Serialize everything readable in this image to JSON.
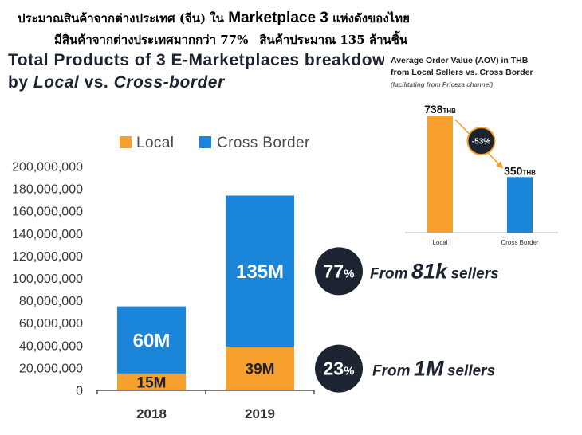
{
  "header": {
    "line1_a": "ประมาณสินค้าจากต่างประเทศ (จีน) ใน",
    "line1_b": "Marketplace 3",
    "line1_c": "แห่งดังของไทย",
    "line2_a": "มีสินค้าจากต่างประเทศมากกว่า 77%",
    "line2_b": "สินค้าประมาณ 135 ล้านชิ้น"
  },
  "colors": {
    "badge": "#1C2331",
    "arrow": "#F7A02D"
  },
  "chart_data": [
    {
      "type": "bar",
      "stacked": true,
      "title": "Total Products of 3 E-Marketplaces breakdow",
      "title_line2": [
        "by",
        "Local",
        "vs.",
        "Cross-border"
      ],
      "categories": [
        "2018",
        "2019"
      ],
      "series": [
        {
          "name": "Local",
          "values": [
            15000000,
            39000000
          ],
          "labels": [
            "15M",
            "39M"
          ],
          "color": "#F7A02D",
          "label_color": "#1C2331"
        },
        {
          "name": "Cross Border",
          "values": [
            60000000,
            135000000
          ],
          "labels": [
            "60M",
            "135M"
          ],
          "color": "#1B86D9",
          "label_color": "#FFFFFF"
        }
      ],
      "ylim": [
        0,
        200000000
      ],
      "yticks": [
        0,
        20000000,
        40000000,
        60000000,
        80000000,
        100000000,
        120000000,
        140000000,
        160000000,
        180000000,
        200000000
      ],
      "ytick_labels": [
        "0",
        "20,000,000",
        "40,000,000",
        "60,000,000",
        "80,000,000",
        "100,000,000",
        "120,000,000",
        "140,000,000",
        "160,000,000",
        "180,000,000",
        "200,000,000"
      ],
      "legend": "top",
      "grid": false
    },
    {
      "type": "bar",
      "title": [
        "Average Order Value (AOV) in THB",
        "from Local Sellers vs. Cross Border"
      ],
      "subtitle": "(facilitating from Priceza channel)",
      "categories": [
        "Local",
        "Cross Border"
      ],
      "values": [
        738,
        350
      ],
      "unit": "THB",
      "colors": [
        "#F7A02D",
        "#1B86D9"
      ],
      "annotation": "-53%",
      "grid": false
    }
  ],
  "callouts": [
    {
      "percent": "77",
      "symbol": "%",
      "prefix": "From",
      "highlight": "81k",
      "suffix": "sellers"
    },
    {
      "percent": "23",
      "symbol": "%",
      "prefix": "From",
      "highlight": "1M",
      "suffix": "sellers"
    }
  ]
}
